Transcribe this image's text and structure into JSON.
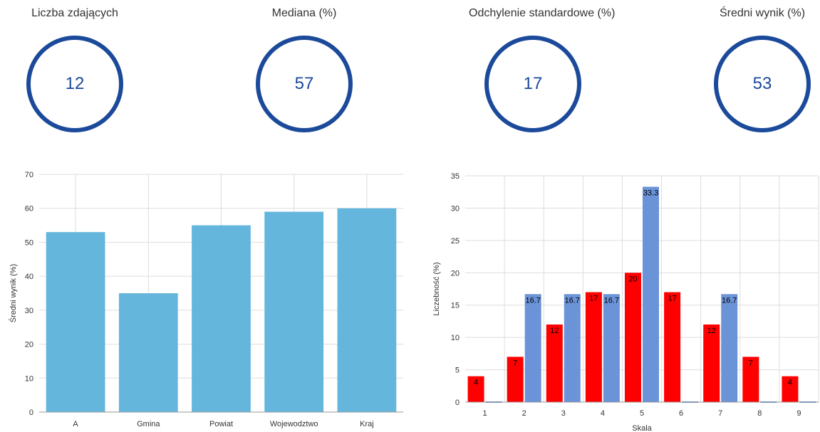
{
  "kpis": [
    {
      "label": "Liczba zdających",
      "value": "12"
    },
    {
      "label": "Mediana (%)",
      "value": "57"
    },
    {
      "label": "Odchylenie standardowe (%)",
      "value": "17"
    },
    {
      "label": "Średni wynik (%)",
      "value": "53"
    }
  ],
  "colors": {
    "ring": "#1c4a9a",
    "bar_left": "#65b6dc",
    "bar_red": "#ff0000",
    "bar_blue": "#6b93d8",
    "grid": "#dddddd"
  },
  "chart_data": [
    {
      "type": "bar",
      "categories": [
        "A",
        "Gmina",
        "Powiat",
        "Wojewodztwo",
        "Kraj"
      ],
      "values": [
        53,
        35,
        55,
        59,
        60
      ],
      "xlabel": "",
      "ylabel": "Średni wynik (%)",
      "ylim": [
        0,
        70
      ],
      "yticks": [
        0,
        10,
        20,
        30,
        40,
        50,
        60,
        70
      ],
      "grid": true
    },
    {
      "type": "bar",
      "categories": [
        "1",
        "2",
        "3",
        "4",
        "5",
        "6",
        "7",
        "8",
        "9"
      ],
      "series": [
        {
          "values": [
            4,
            7,
            12,
            17,
            20,
            17,
            12,
            7,
            4
          ],
          "labels": [
            "4",
            "7",
            "12",
            "17",
            "20",
            "17",
            "12",
            "7",
            "4"
          ]
        },
        {
          "values": [
            0,
            16.7,
            16.7,
            16.7,
            33.3,
            0,
            16.7,
            0,
            0
          ],
          "labels": [
            "",
            "16.7",
            "16.7",
            "16.7",
            "33.3",
            "",
            "16.7",
            "",
            ""
          ]
        }
      ],
      "xlabel": "Skala",
      "ylabel": "Liczebność (%)",
      "ylim": [
        0,
        35
      ],
      "yticks": [
        0,
        5,
        10,
        15,
        20,
        25,
        30,
        35
      ],
      "grid": true
    }
  ]
}
